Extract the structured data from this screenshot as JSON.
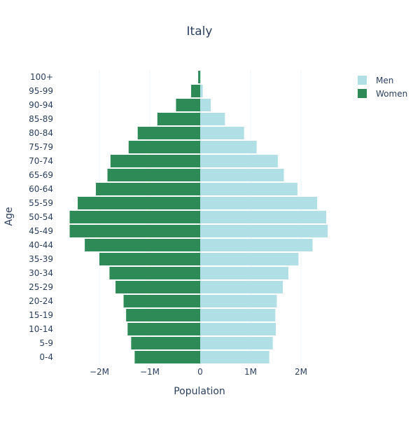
{
  "chart_data": {
    "type": "bar",
    "orientation": "horizontal",
    "title": "Italy",
    "xlabel": "Population",
    "ylabel": "Age",
    "xlim": [
      -2.6,
      2.6
    ],
    "x_ticks": [
      -2,
      -1,
      0,
      1,
      2
    ],
    "x_tick_labels": [
      "−2M",
      "−1M",
      "0",
      "1M",
      "2M"
    ],
    "grid": true,
    "legend_position": "top-right",
    "categories": [
      "0-4",
      "5-9",
      "10-14",
      "15-19",
      "20-24",
      "25-29",
      "30-34",
      "35-39",
      "40-44",
      "45-49",
      "50-54",
      "55-59",
      "60-64",
      "65-69",
      "70-74",
      "75-79",
      "80-84",
      "85-89",
      "90-94",
      "95-99",
      "100+"
    ],
    "series": [
      {
        "name": "Men",
        "color": "#b0e0e6",
        "values": [
          1.37,
          1.44,
          1.5,
          1.49,
          1.52,
          1.64,
          1.75,
          1.95,
          2.23,
          2.53,
          2.5,
          2.32,
          1.93,
          1.66,
          1.54,
          1.12,
          0.87,
          0.49,
          0.21,
          0.05,
          0.01
        ]
      },
      {
        "name": "Women",
        "color": "#2e8b57",
        "values": [
          -1.3,
          -1.37,
          -1.44,
          -1.47,
          -1.52,
          -1.68,
          -1.8,
          -2.0,
          -2.29,
          -2.59,
          -2.59,
          -2.43,
          -2.07,
          -1.84,
          -1.78,
          -1.42,
          -1.24,
          -0.85,
          -0.48,
          -0.18,
          -0.04
        ]
      }
    ]
  }
}
